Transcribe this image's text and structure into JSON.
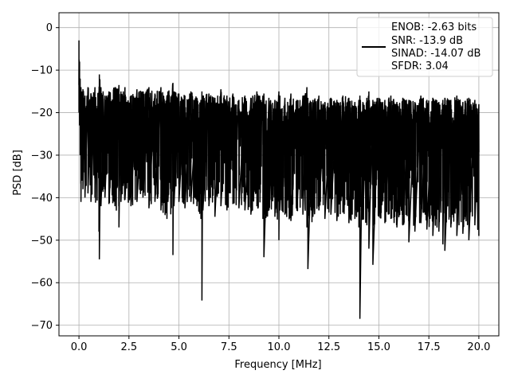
{
  "chart_data": {
    "type": "line",
    "xlabel": "Frequency [MHz]",
    "ylabel": "PSD [dB]",
    "xlim": [
      -1.0,
      21.0
    ],
    "ylim": [
      -72.5,
      3.5
    ],
    "x_ticks": [
      0.0,
      2.5,
      5.0,
      7.5,
      10.0,
      12.5,
      15.0,
      17.5,
      20.0
    ],
    "x_tick_labels": [
      "0.0",
      "2.5",
      "5.0",
      "7.5",
      "10.0",
      "12.5",
      "15.0",
      "17.5",
      "20.0"
    ],
    "y_ticks": [
      0,
      -10,
      -20,
      -30,
      -40,
      -50,
      -60,
      -70
    ],
    "y_tick_labels": [
      "0",
      "−10",
      "−20",
      "−30",
      "−40",
      "−50",
      "−60",
      "−70"
    ],
    "grid": true,
    "legend_position": "top-right",
    "legend_lines": [
      "ENOB: -2.63 bits",
      "SNR: -13.9 dB",
      "SINAD: -14.07 dB",
      "SFDR: 3.04"
    ],
    "series": [
      {
        "color": "#000000",
        "x": [
          0.0,
          0.03,
          0.06,
          0.1,
          0.14,
          0.2,
          0.3,
          0.45,
          0.6,
          0.8,
          1.0,
          1.02,
          1.1,
          1.3,
          1.5,
          1.8,
          2.0,
          2.1,
          2.3,
          2.6,
          2.9,
          3.2,
          3.5,
          3.8,
          4.1,
          4.4,
          4.45,
          4.7,
          4.75,
          5.0,
          5.3,
          5.6,
          5.9,
          6.1,
          6.15,
          6.2,
          6.5,
          6.8,
          7.1,
          7.4,
          7.7,
          8.0,
          8.3,
          8.6,
          8.9,
          9.2,
          9.25,
          9.5,
          9.8,
          10.0,
          10.05,
          10.3,
          10.6,
          10.9,
          11.2,
          11.4,
          11.45,
          11.7,
          12.0,
          12.3,
          12.6,
          12.9,
          13.2,
          13.5,
          13.8,
          14.0,
          14.05,
          14.2,
          14.4,
          14.5,
          14.7,
          15.0,
          15.3,
          15.6,
          15.9,
          16.2,
          16.5,
          16.8,
          17.1,
          17.4,
          17.7,
          18.0,
          18.2,
          18.3,
          18.6,
          18.9,
          19.2,
          19.5,
          19.8,
          20.0
        ],
        "upper": [
          -3.0,
          -8.0,
          -12.0,
          -14.0,
          -15.0,
          -14.5,
          -16.0,
          -14.0,
          -15.5,
          -14.0,
          -15.0,
          -11.0,
          -14.0,
          -16.0,
          -15.0,
          -14.0,
          -13.5,
          -15.0,
          -14.0,
          -16.0,
          -14.5,
          -15.0,
          -14.0,
          -15.5,
          -14.0,
          -16.0,
          -15.0,
          -13.0,
          -15.0,
          -15.5,
          -16.0,
          -15.0,
          -16.5,
          -17.0,
          -15.0,
          -16.0,
          -15.5,
          -16.5,
          -14.5,
          -16.0,
          -15.5,
          -17.0,
          -16.0,
          -16.5,
          -15.0,
          -16.0,
          -15.5,
          -16.5,
          -17.0,
          -15.0,
          -16.0,
          -16.5,
          -15.5,
          -17.0,
          -16.0,
          -14.0,
          -16.5,
          -17.0,
          -16.0,
          -17.5,
          -16.5,
          -17.0,
          -16.0,
          -16.5,
          -17.5,
          -17.0,
          -16.0,
          -17.5,
          -16.5,
          -15.0,
          -17.0,
          -16.5,
          -17.0,
          -16.0,
          -17.5,
          -16.5,
          -17.0,
          -17.5,
          -16.0,
          -17.0,
          -16.5,
          -17.5,
          -17.0,
          -16.5,
          -17.0,
          -16.0,
          -17.5,
          -16.5,
          -17.0,
          -18.0
        ],
        "lower": [
          -20.0,
          -23.0,
          -30.0,
          -41.0,
          -36.0,
          -38.0,
          -40.0,
          -39.0,
          -41.0,
          -40.0,
          -48.0,
          -54.5,
          -42.0,
          -40.0,
          -41.5,
          -42.0,
          -47.0,
          -41.0,
          -40.5,
          -42.0,
          -41.0,
          -40.0,
          -42.5,
          -41.0,
          -43.0,
          -45.0,
          -41.0,
          -53.5,
          -42.0,
          -41.0,
          -42.5,
          -41.0,
          -42.0,
          -45.0,
          -64.2,
          -43.0,
          -42.0,
          -44.5,
          -42.0,
          -43.0,
          -41.5,
          -42.5,
          -43.0,
          -44.0,
          -42.0,
          -45.0,
          -54.0,
          -43.0,
          -44.5,
          -50.0,
          -43.0,
          -44.0,
          -45.5,
          -43.0,
          -44.0,
          -47.0,
          -56.8,
          -44.5,
          -43.0,
          -45.0,
          -44.0,
          -45.5,
          -43.5,
          -46.0,
          -45.0,
          -47.0,
          -68.5,
          -45.0,
          -46.5,
          -52.0,
          -55.8,
          -44.5,
          -46.0,
          -45.0,
          -47.0,
          -46.5,
          -50.5,
          -48.0,
          -46.0,
          -47.5,
          -49.0,
          -48.0,
          -51.0,
          -52.5,
          -47.0,
          -49.0,
          -48.5,
          -50.0,
          -46.5,
          -49.0
        ]
      }
    ]
  }
}
